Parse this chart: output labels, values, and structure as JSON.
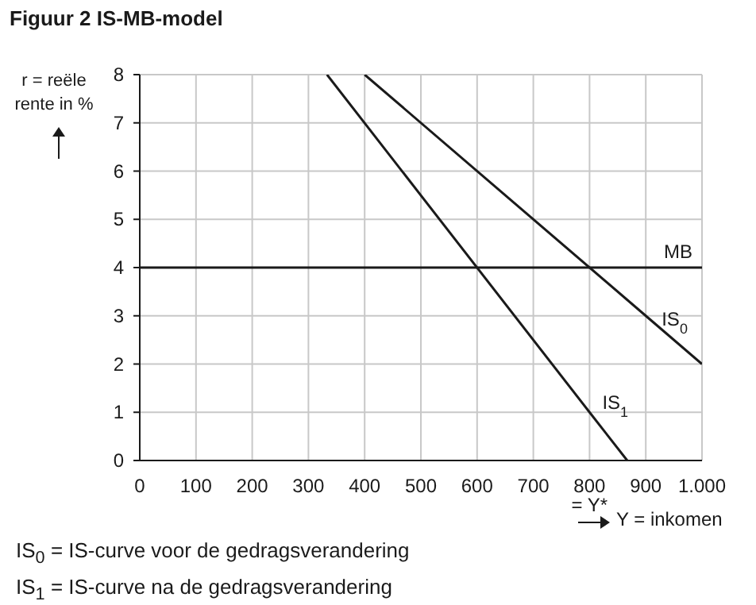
{
  "chart_data": {
    "type": "line",
    "title": "Figuur 2  IS-MB-model",
    "xlabel": "Y = inkomen",
    "ylabel": "r = reële rente in %",
    "series": [
      {
        "name": "IS$_{0}$",
        "color": "#1a1a1a",
        "x": [
          400,
          900,
          1000
        ],
        "values": [
          8,
          3,
          2
        ]
      },
      {
        "name": "IS$_{1}$",
        "color": "#1a1a1a",
        "x": [
          333,
          800,
          867
        ],
        "values": [
          8,
          1,
          0
        ]
      }
    ],
    "ref_lines": [
      {
        "axis": "y",
        "value": 4,
        "label": "MB",
        "color": "#1a1a1a"
      }
    ],
    "xlim": [
      0,
      1000
    ],
    "xticks": [
      0,
      100,
      200,
      300,
      400,
      500,
      600,
      700,
      {
        "value": 800,
        "label": "800\n= Y*"
      },
      900,
      {
        "value": 1000,
        "label": "1.000"
      }
    ],
    "ylim": [
      0,
      8
    ],
    "yticks": [
      0,
      1,
      2,
      3,
      4,
      5,
      6,
      7,
      8
    ],
    "grid": true,
    "legend": false,
    "marker": "none",
    "line_style": "solid",
    "annotations": [
      "IS$_{0}$ = IS-curve voor de gedragsverandering",
      "IS$_{1}$ = IS-curve na de gedragsverandering"
    ]
  }
}
